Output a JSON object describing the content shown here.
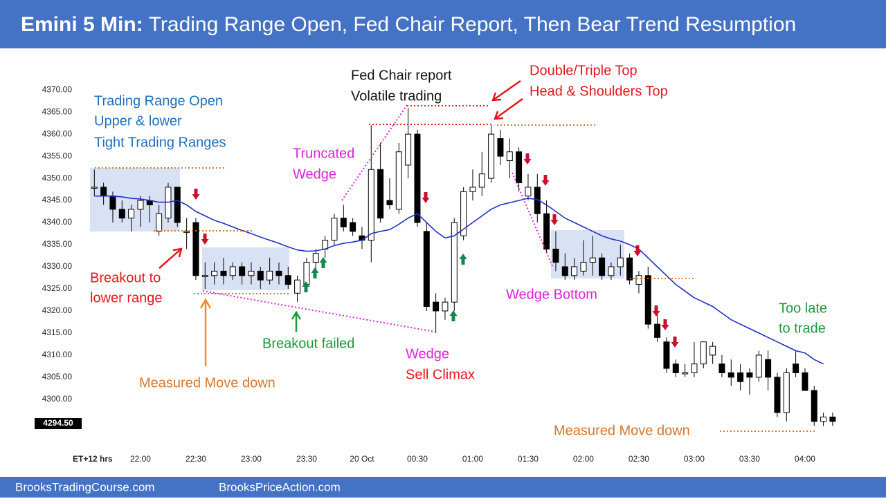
{
  "header": {
    "title_bold": "Emini 5 Min:",
    "title": "Trading Range Open, Fed Chair Report, Then Bear Trend Resumption"
  },
  "footer": {
    "left": "BrooksTradingCourse.com",
    "right": "BrooksPriceAction.com"
  },
  "chart_data": {
    "type": "candlestick",
    "x_label": "ET+12 hrs",
    "categories": [
      null,
      null,
      null,
      null,
      null,
      "22:00",
      null,
      null,
      null,
      null,
      null,
      "22:30",
      null,
      null,
      null,
      null,
      null,
      "23:00",
      null,
      null,
      null,
      null,
      null,
      "23:30",
      null,
      null,
      null,
      null,
      null,
      "20 Oct",
      null,
      null,
      null,
      null,
      null,
      "00:30",
      null,
      null,
      null,
      null,
      null,
      "01:00",
      null,
      null,
      null,
      null,
      null,
      "01:30",
      null,
      null,
      null,
      null,
      null,
      "02:00",
      null,
      null,
      null,
      null,
      null,
      "02:30",
      null,
      null,
      null,
      null,
      null,
      "03:00",
      null,
      null,
      null,
      null,
      null,
      "03:30",
      null,
      null,
      null,
      null,
      null,
      "04:00",
      null,
      null,
      null
    ],
    "open": [
      4348,
      4348,
      4346,
      4343,
      4341,
      4343,
      4345,
      4338,
      4341,
      4348,
      4338,
      4340,
      4328,
      4328,
      4329,
      4328,
      4330,
      4328,
      4329,
      4327,
      4329,
      4328,
      4324,
      4326,
      4331,
      4334,
      4336,
      4341,
      4340,
      4337,
      4336,
      4352,
      4345,
      4343,
      4353,
      4360,
      4338,
      4322,
      4320,
      4322,
      4337,
      4347,
      4348,
      4350,
      4359,
      4354,
      4356,
      4346,
      4348,
      4342,
      4334,
      4330,
      4328,
      4329,
      4331,
      4332,
      4328,
      4330,
      4332,
      4326,
      4328,
      4317,
      4313,
      4308,
      4306,
      4306,
      4308,
      4310,
      4308,
      4306,
      4306,
      4306,
      4305,
      4309,
      4305,
      4297,
      4308,
      4306,
      4302,
      4295,
      4296
    ],
    "high": [
      4352,
      4349,
      4347,
      4345,
      4344,
      4346,
      4346,
      4344,
      4349,
      4348,
      4341,
      4341,
      4331,
      4331,
      4332,
      4331,
      4331,
      4331,
      4330,
      4332,
      4331,
      4330,
      4328,
      4332,
      4334,
      4337,
      4342,
      4344,
      4341,
      4339,
      4362,
      4358,
      4350,
      4358,
      4366,
      4361,
      4340,
      4324,
      4323,
      4341,
      4348,
      4352,
      4356,
      4362,
      4361,
      4359,
      4357,
      4351,
      4351,
      4345,
      4338,
      4333,
      4332,
      4336,
      4337,
      4333,
      4331,
      4335,
      4333,
      4329,
      4330,
      4320,
      4314,
      4309,
      4308,
      4313,
      4313,
      4313,
      4310,
      4309,
      4308,
      4307,
      4311,
      4311,
      4306,
      4307,
      4311,
      4307,
      4303,
      4297,
      4297
    ],
    "low": [
      4346,
      4344,
      4340,
      4340,
      4338,
      4339,
      4340,
      4337,
      4340,
      4339,
      4334,
      4327,
      4325,
      4326,
      4326,
      4327,
      4326,
      4326,
      4325,
      4326,
      4326,
      4325,
      4322,
      4325,
      4329,
      4332,
      4335,
      4338,
      4337,
      4334,
      4331,
      4340,
      4343,
      4342,
      4350,
      4339,
      4320,
      4315,
      4318,
      4320,
      4336,
      4345,
      4346,
      4349,
      4353,
      4350,
      4347,
      4345,
      4340,
      4333,
      4329,
      4327,
      4327,
      4328,
      4328,
      4327,
      4327,
      4328,
      4326,
      4324,
      4316,
      4313,
      4306,
      4305,
      4305,
      4305,
      4307,
      4308,
      4305,
      4303,
      4302,
      4301,
      4304,
      4302,
      4296,
      4295,
      4305,
      4302,
      4294,
      4294,
      4294
    ],
    "close": [
      4348,
      4346,
      4343,
      4341,
      4343,
      4345,
      4344,
      4342,
      4348,
      4340,
      4338,
      4328,
      4328,
      4329,
      4328,
      4330,
      4328,
      4329,
      4327,
      4329,
      4328,
      4326,
      4327,
      4331,
      4333,
      4336,
      4341,
      4339,
      4338,
      4336,
      4352,
      4341,
      4344,
      4356,
      4360,
      4340,
      4321,
      4320,
      4322,
      4340,
      4347,
      4348,
      4351,
      4360,
      4355,
      4356,
      4349,
      4348,
      4342,
      4334,
      4331,
      4328,
      4330,
      4331,
      4332,
      4328,
      4330,
      4332,
      4327,
      4328,
      4317,
      4314,
      4307,
      4306,
      4306,
      4308,
      4313,
      4312,
      4306,
      4305,
      4304,
      4305,
      4310,
      4305,
      4297,
      4306,
      4306,
      4302,
      4295,
      4296,
      4295
    ],
    "up_color": "#ffffff",
    "down_color": "#000000",
    "moving_average": {
      "color": "#1f2fc8",
      "values": [
        4346,
        4346,
        4346,
        4345.8,
        4345.5,
        4345.3,
        4345,
        4344.6,
        4344.6,
        4345,
        4344,
        4342.5,
        4341.5,
        4340.5,
        4339.8,
        4339,
        4338.2,
        4337.5,
        4336.7,
        4336,
        4335.3,
        4334.5,
        4333.8,
        4333.5,
        4333.6,
        4334,
        4334.8,
        4335.3,
        4335.6,
        4336,
        4337.5,
        4338,
        4338.4,
        4339.6,
        4341,
        4342,
        4340,
        4338,
        4336.5,
        4337,
        4338.5,
        4340,
        4341.5,
        4343,
        4344,
        4344.5,
        4345,
        4345.5,
        4345.2,
        4344,
        4342.5,
        4341,
        4340,
        4339,
        4338,
        4337,
        4336.3,
        4335.8,
        4335,
        4334,
        4332,
        4330,
        4328,
        4326,
        4324.5,
        4323,
        4322,
        4321,
        4319.5,
        4318,
        4317,
        4316,
        4315,
        4314,
        4313,
        4312,
        4311,
        4310.5,
        4309,
        4308,
        null
      ]
    },
    "ylim": [
      4289.5,
      4375.5
    ],
    "yticks": [
      {
        "value": 4300,
        "label": "4300.00"
      },
      {
        "value": 4305,
        "label": "4305.00"
      },
      {
        "value": 4310,
        "label": "4310.00"
      },
      {
        "value": 4315,
        "label": "4315.00"
      },
      {
        "value": 4320,
        "label": "4320.00"
      },
      {
        "value": 4325,
        "label": "4325.00"
      },
      {
        "value": 4330,
        "label": "4330.00"
      },
      {
        "value": 4335,
        "label": "4335.00"
      },
      {
        "value": 4340,
        "label": "4340.00"
      },
      {
        "value": 4345,
        "label": "4345.00"
      },
      {
        "value": 4350,
        "label": "4350.00"
      },
      {
        "value": 4355,
        "label": "4355.00"
      },
      {
        "value": 4360,
        "label": "4360.00"
      },
      {
        "value": 4365,
        "label": "4365.00"
      },
      {
        "value": 4370,
        "label": "4370.00"
      }
    ],
    "last_price": {
      "value": 4294.5,
      "label": "4294.50"
    },
    "annotations": [
      {
        "lines": [
          "Trading Range Open",
          "Upper & lower",
          "Tight Trading Ranges"
        ]
      },
      {
        "lines": [
          "Fed Chair report",
          "Volatile trading"
        ]
      },
      {
        "lines": [
          "Double/Triple Top",
          "Head & Shoulders Top"
        ]
      },
      {
        "lines": [
          "Truncated",
          "Wedge"
        ]
      },
      {
        "lines": [
          "Breakout to",
          "lower range"
        ]
      },
      {
        "lines": [
          "Breakout failed"
        ]
      },
      {
        "lines": [
          "Wedge"
        ]
      },
      {
        "lines": [
          "Sell Climax"
        ]
      },
      {
        "lines": [
          "Measured Move down"
        ]
      },
      {
        "lines": [
          "Wedge Bottom"
        ]
      },
      {
        "lines": [
          "Too late",
          "to trade"
        ]
      },
      {
        "lines": [
          "Measured Move down"
        ]
      }
    ]
  }
}
